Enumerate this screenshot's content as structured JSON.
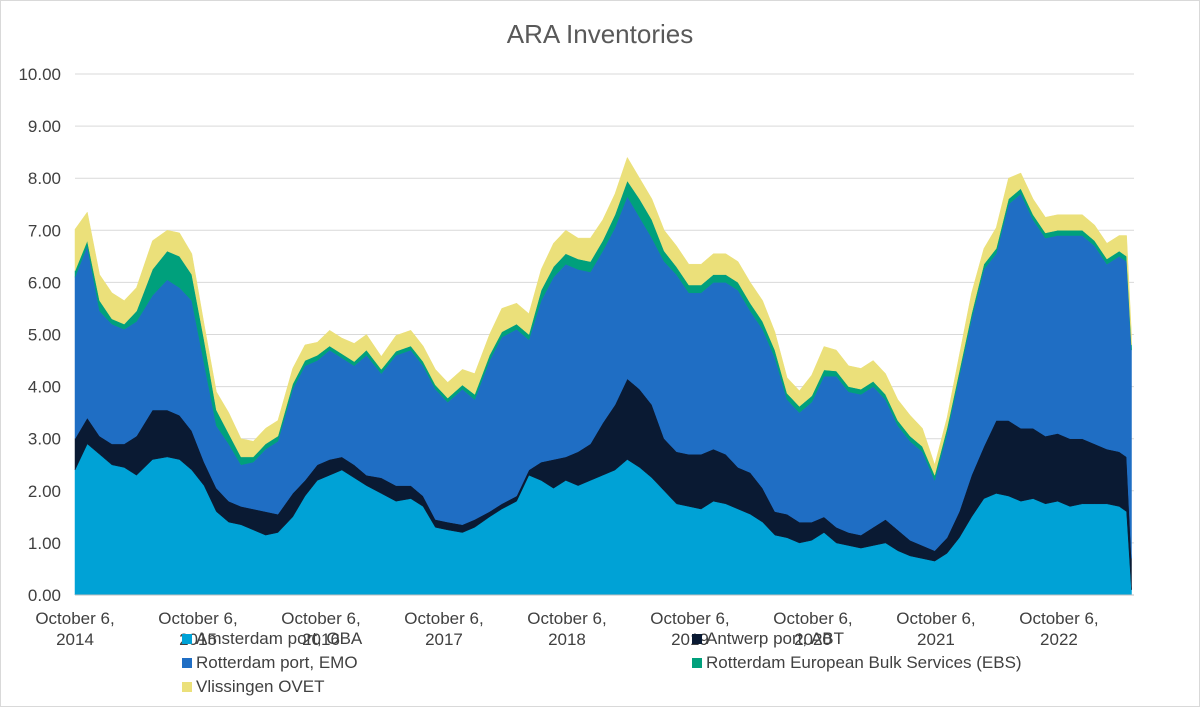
{
  "chart_data": {
    "type": "area",
    "stacked": true,
    "title": "ARA Inventories",
    "xlabel": "",
    "ylabel": "",
    "ylim": [
      0,
      10
    ],
    "yticks": [
      "0.00",
      "1.00",
      "2.00",
      "3.00",
      "4.00",
      "5.00",
      "6.00",
      "7.00",
      "8.00",
      "9.00",
      "10.00"
    ],
    "grid": true,
    "legend_position": "bottom",
    "xlim": [
      2014.77,
      2023.38
    ],
    "xticks": [
      {
        "x": 2014.77,
        "line1": "October 6,",
        "line2": "2014"
      },
      {
        "x": 2015.77,
        "line1": "October 6,",
        "line2": "2015"
      },
      {
        "x": 2016.77,
        "line1": "October 6,",
        "line2": "2016"
      },
      {
        "x": 2017.77,
        "line1": "October 6,",
        "line2": "2017"
      },
      {
        "x": 2018.77,
        "line1": "October 6,",
        "line2": "2018"
      },
      {
        "x": 2019.77,
        "line1": "October 6,",
        "line2": "2019"
      },
      {
        "x": 2020.77,
        "line1": "October 6,",
        "line2": "2020"
      },
      {
        "x": 2021.77,
        "line1": "October 6,",
        "line2": "2021"
      },
      {
        "x": 2022.77,
        "line1": "October 6,",
        "line2": "2022"
      }
    ],
    "x": [
      2014.77,
      2014.87,
      2014.97,
      2015.07,
      2015.17,
      2015.27,
      2015.4,
      2015.52,
      2015.62,
      2015.72,
      2015.82,
      2015.92,
      2016.02,
      2016.12,
      2016.22,
      2016.32,
      2016.42,
      2016.54,
      2016.64,
      2016.74,
      2016.84,
      2016.94,
      2017.04,
      2017.14,
      2017.26,
      2017.38,
      2017.5,
      2017.6,
      2017.7,
      2017.8,
      2017.92,
      2018.02,
      2018.14,
      2018.24,
      2018.36,
      2018.46,
      2018.56,
      2018.66,
      2018.76,
      2018.86,
      2018.96,
      2019.06,
      2019.16,
      2019.26,
      2019.36,
      2019.46,
      2019.56,
      2019.66,
      2019.76,
      2019.86,
      2019.96,
      2020.06,
      2020.16,
      2020.26,
      2020.36,
      2020.46,
      2020.56,
      2020.66,
      2020.76,
      2020.86,
      2020.96,
      2021.06,
      2021.16,
      2021.26,
      2021.36,
      2021.46,
      2021.56,
      2021.66,
      2021.76,
      2021.86,
      2021.96,
      2022.06,
      2022.16,
      2022.26,
      2022.36,
      2022.46,
      2022.56,
      2022.66,
      2022.76,
      2022.86,
      2022.96,
      2023.06,
      2023.16,
      2023.26,
      2023.32,
      2023.36
    ],
    "series": [
      {
        "name": "Amsterdam port, OBA",
        "color": "#00a2d6",
        "values": [
          2.4,
          2.9,
          2.7,
          2.5,
          2.45,
          2.3,
          2.6,
          2.65,
          2.6,
          2.4,
          2.1,
          1.6,
          1.4,
          1.35,
          1.25,
          1.15,
          1.2,
          1.5,
          1.9,
          2.2,
          2.3,
          2.4,
          2.25,
          2.1,
          1.95,
          1.8,
          1.85,
          1.7,
          1.3,
          1.25,
          1.2,
          1.3,
          1.5,
          1.65,
          1.8,
          2.3,
          2.2,
          2.05,
          2.2,
          2.1,
          2.2,
          2.3,
          2.4,
          2.6,
          2.45,
          2.25,
          2.0,
          1.75,
          1.7,
          1.65,
          1.8,
          1.75,
          1.65,
          1.55,
          1.4,
          1.15,
          1.1,
          1.0,
          1.05,
          1.2,
          1.0,
          0.95,
          0.9,
          0.95,
          1.0,
          0.85,
          0.75,
          0.7,
          0.65,
          0.8,
          1.1,
          1.5,
          1.85,
          1.95,
          1.9,
          1.8,
          1.85,
          1.75,
          1.8,
          1.7,
          1.75,
          1.75,
          1.75,
          1.7,
          1.6,
          0.1
        ]
      },
      {
        "name": "Antwerp port, ABT",
        "color": "#0a1a33",
        "values": [
          0.6,
          0.5,
          0.35,
          0.4,
          0.45,
          0.75,
          0.95,
          0.9,
          0.85,
          0.75,
          0.45,
          0.45,
          0.4,
          0.35,
          0.4,
          0.45,
          0.35,
          0.45,
          0.3,
          0.3,
          0.3,
          0.25,
          0.25,
          0.2,
          0.3,
          0.3,
          0.25,
          0.2,
          0.15,
          0.15,
          0.15,
          0.15,
          0.1,
          0.1,
          0.1,
          0.1,
          0.35,
          0.55,
          0.45,
          0.65,
          0.7,
          1.0,
          1.25,
          1.55,
          1.5,
          1.4,
          1.0,
          1.0,
          1.0,
          1.05,
          1.0,
          0.95,
          0.8,
          0.8,
          0.65,
          0.45,
          0.45,
          0.4,
          0.35,
          0.3,
          0.3,
          0.25,
          0.25,
          0.35,
          0.45,
          0.4,
          0.3,
          0.25,
          0.2,
          0.3,
          0.5,
          0.8,
          1.0,
          1.4,
          1.45,
          1.4,
          1.35,
          1.3,
          1.3,
          1.3,
          1.25,
          1.15,
          1.05,
          1.05,
          1.05,
          0.6
        ]
      },
      {
        "name": "Rotterdam port, EMO",
        "color": "#1f6ec4",
        "values": [
          3.1,
          3.3,
          2.4,
          2.3,
          2.2,
          2.2,
          2.2,
          2.5,
          2.45,
          2.5,
          1.9,
          1.2,
          1.1,
          0.8,
          0.9,
          1.2,
          1.4,
          2.0,
          2.2,
          2.0,
          2.1,
          1.9,
          1.9,
          2.3,
          2.0,
          2.5,
          2.6,
          2.5,
          2.5,
          2.3,
          2.6,
          2.3,
          2.9,
          3.2,
          3.2,
          2.5,
          3.1,
          3.5,
          3.7,
          3.5,
          3.3,
          3.3,
          3.4,
          3.5,
          3.3,
          3.2,
          3.4,
          3.4,
          3.1,
          3.1,
          3.2,
          3.3,
          3.4,
          3.1,
          3.05,
          2.95,
          2.2,
          2.1,
          2.3,
          2.7,
          2.9,
          2.7,
          2.7,
          2.7,
          2.3,
          2.0,
          1.9,
          1.8,
          1.35,
          2.0,
          2.6,
          3.0,
          3.4,
          3.2,
          4.15,
          4.5,
          4.0,
          3.8,
          3.8,
          3.9,
          3.9,
          3.8,
          3.55,
          3.75,
          3.75,
          4.0
        ]
      },
      {
        "name": "Rotterdam European Bulk Services (EBS)",
        "color": "#00a07c",
        "values": [
          0.12,
          0.1,
          0.2,
          0.1,
          0.1,
          0.2,
          0.5,
          0.55,
          0.6,
          0.5,
          0.45,
          0.3,
          0.2,
          0.15,
          0.1,
          0.1,
          0.1,
          0.1,
          0.1,
          0.1,
          0.08,
          0.08,
          0.08,
          0.1,
          0.08,
          0.08,
          0.08,
          0.08,
          0.08,
          0.08,
          0.08,
          0.1,
          0.1,
          0.1,
          0.1,
          0.1,
          0.2,
          0.2,
          0.2,
          0.2,
          0.2,
          0.2,
          0.25,
          0.3,
          0.35,
          0.35,
          0.2,
          0.15,
          0.15,
          0.15,
          0.15,
          0.15,
          0.15,
          0.15,
          0.15,
          0.15,
          0.12,
          0.12,
          0.12,
          0.12,
          0.1,
          0.1,
          0.1,
          0.1,
          0.1,
          0.1,
          0.1,
          0.1,
          0.1,
          0.1,
          0.1,
          0.1,
          0.1,
          0.1,
          0.1,
          0.1,
          0.1,
          0.1,
          0.1,
          0.1,
          0.1,
          0.1,
          0.1,
          0.1,
          0.1,
          0.1
        ]
      },
      {
        "name": "Vlissingen OVET",
        "color": "#ebe07a",
        "values": [
          0.8,
          0.55,
          0.5,
          0.5,
          0.45,
          0.45,
          0.55,
          0.4,
          0.45,
          0.4,
          0.3,
          0.35,
          0.4,
          0.35,
          0.3,
          0.3,
          0.3,
          0.3,
          0.3,
          0.25,
          0.3,
          0.3,
          0.35,
          0.3,
          0.25,
          0.3,
          0.3,
          0.3,
          0.3,
          0.3,
          0.3,
          0.4,
          0.4,
          0.45,
          0.4,
          0.4,
          0.4,
          0.45,
          0.45,
          0.4,
          0.45,
          0.4,
          0.4,
          0.45,
          0.4,
          0.4,
          0.4,
          0.4,
          0.4,
          0.4,
          0.4,
          0.4,
          0.4,
          0.4,
          0.4,
          0.35,
          0.3,
          0.3,
          0.4,
          0.45,
          0.4,
          0.4,
          0.4,
          0.4,
          0.4,
          0.4,
          0.4,
          0.35,
          0.2,
          0.2,
          0.3,
          0.4,
          0.3,
          0.4,
          0.4,
          0.3,
          0.3,
          0.3,
          0.3,
          0.3,
          0.3,
          0.3,
          0.3,
          0.3,
          0.4,
          0.2
        ]
      }
    ]
  }
}
